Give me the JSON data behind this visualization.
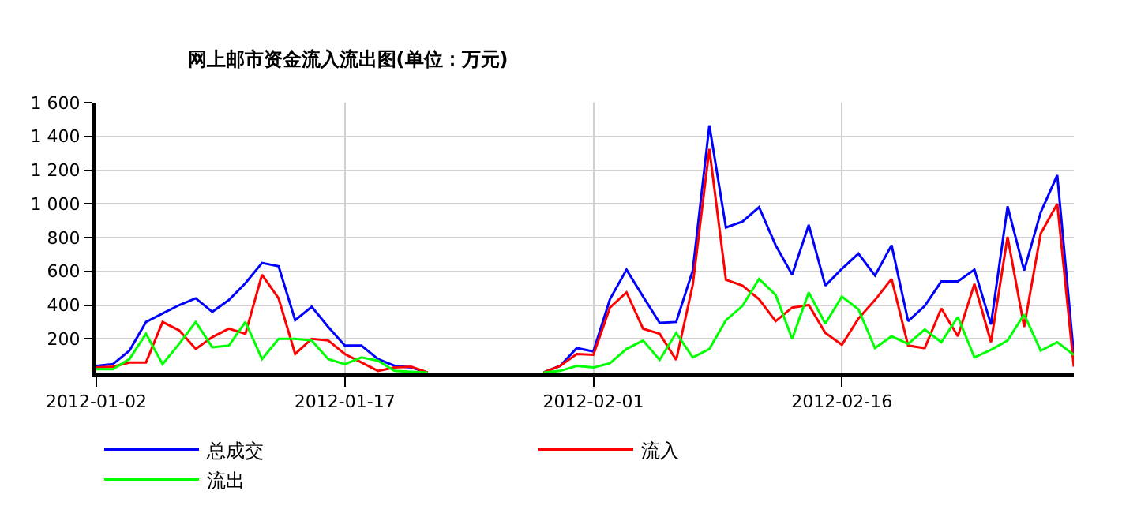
{
  "chart_data": {
    "type": "line",
    "title": "网上邮市资金流入流出图(单位：万元)",
    "x": [
      "2012-01-02",
      "2012-01-03",
      "2012-01-04",
      "2012-01-05",
      "2012-01-06",
      "2012-01-07",
      "2012-01-08",
      "2012-01-09",
      "2012-01-10",
      "2012-01-11",
      "2012-01-12",
      "2012-01-13",
      "2012-01-14",
      "2012-01-15",
      "2012-01-16",
      "2012-01-17",
      "2012-01-18",
      "2012-01-19",
      "2012-01-20",
      "2012-01-21",
      "2012-01-22",
      "2012-01-23",
      "2012-01-24",
      "2012-01-25",
      "2012-01-26",
      "2012-01-27",
      "2012-01-28",
      "2012-01-29",
      "2012-01-30",
      "2012-01-31",
      "2012-02-01",
      "2012-02-02",
      "2012-02-03",
      "2012-02-04",
      "2012-02-05",
      "2012-02-06",
      "2012-02-07",
      "2012-02-08",
      "2012-02-09",
      "2012-02-10",
      "2012-02-11",
      "2012-02-12",
      "2012-02-13",
      "2012-02-14",
      "2012-02-15",
      "2012-02-16",
      "2012-02-17",
      "2012-02-18",
      "2012-02-19",
      "2012-02-20",
      "2012-02-21",
      "2012-02-22",
      "2012-02-23",
      "2012-02-24",
      "2012-02-25",
      "2012-02-26",
      "2012-02-27",
      "2012-02-28",
      "2012-02-29",
      "2012-03-01"
    ],
    "series": [
      {
        "name": "总成交",
        "color": "#0000ff",
        "values": [
          40,
          50,
          130,
          300,
          350,
          400,
          440,
          360,
          430,
          530,
          650,
          630,
          310,
          390,
          270,
          160,
          160,
          80,
          40,
          30,
          0,
          null,
          null,
          null,
          null,
          null,
          null,
          0,
          40,
          145,
          125,
          435,
          610,
          450,
          295,
          300,
          605,
          1465,
          860,
          895,
          980,
          755,
          580,
          875,
          515,
          615,
          705,
          575,
          755,
          305,
          395,
          540,
          540,
          610,
          285,
          985,
          605,
          950,
          1170,
          105
        ]
      },
      {
        "name": "流入",
        "color": "#ff0000",
        "values": [
          30,
          35,
          60,
          60,
          300,
          250,
          140,
          210,
          260,
          230,
          580,
          440,
          110,
          200,
          190,
          110,
          60,
          10,
          30,
          35,
          0,
          null,
          null,
          null,
          null,
          null,
          null,
          0,
          40,
          110,
          105,
          385,
          475,
          260,
          230,
          75,
          520,
          1325,
          550,
          515,
          435,
          305,
          385,
          400,
          235,
          165,
          320,
          430,
          555,
          160,
          145,
          380,
          215,
          525,
          180,
          805,
          270,
          825,
          1000,
          35
        ]
      },
      {
        "name": "流出",
        "color": "#00ff00",
        "values": [
          20,
          20,
          80,
          230,
          50,
          170,
          300,
          150,
          160,
          300,
          80,
          200,
          200,
          190,
          80,
          50,
          90,
          70,
          10,
          5,
          0,
          null,
          null,
          null,
          null,
          null,
          null,
          0,
          10,
          40,
          30,
          55,
          140,
          190,
          75,
          235,
          90,
          140,
          310,
          395,
          555,
          460,
          200,
          475,
          290,
          450,
          375,
          145,
          215,
          170,
          255,
          180,
          330,
          90,
          135,
          190,
          345,
          130,
          180,
          105
        ]
      }
    ],
    "xlim": [
      "2012-01-02",
      "2012-03-01"
    ],
    "xticks": [
      {
        "value": "2012-01-02",
        "label": "2012-01-02"
      },
      {
        "value": "2012-01-17",
        "label": "2012-01-17"
      },
      {
        "value": "2012-02-01",
        "label": "2012-02-01"
      },
      {
        "value": "2012-02-16",
        "label": "2012-02-16"
      }
    ],
    "ylim": [
      0,
      1600
    ],
    "yticks": [
      {
        "value": 200,
        "label": "200"
      },
      {
        "value": 400,
        "label": "400"
      },
      {
        "value": 600,
        "label": "600"
      },
      {
        "value": 800,
        "label": "800"
      },
      {
        "value": 1000,
        "label": "1 000"
      },
      {
        "value": 1200,
        "label": "1 200"
      },
      {
        "value": 1400,
        "label": "1 400"
      },
      {
        "value": 1600,
        "label": "1 600"
      }
    ],
    "grid": true,
    "legend": "bottom",
    "marker": "none",
    "line_style": "solid"
  }
}
